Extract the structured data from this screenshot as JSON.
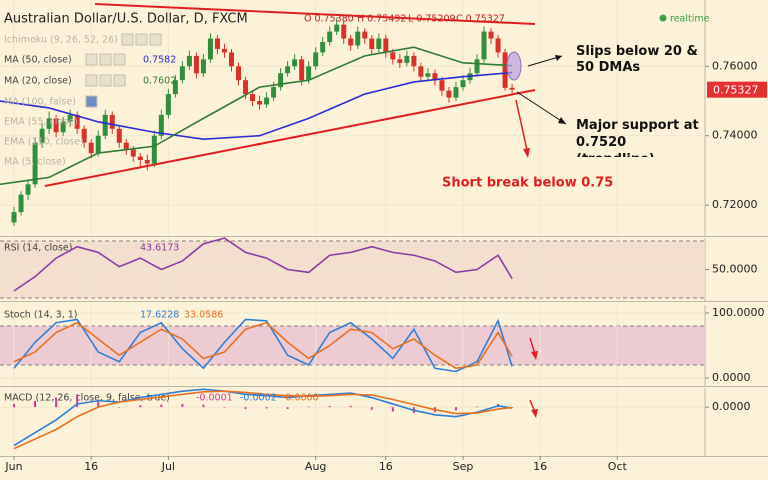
{
  "header": {
    "title": "Australian Dollar/U.S. Dollar, D, FXCM",
    "ohlc": [
      "O 0.75380",
      "H 0.75492",
      "L 0.75209",
      "C 0.75327"
    ],
    "status": "realtime"
  },
  "studies": [
    "Ichimoku (9, 26, 52, 26)",
    "MA (100, false)",
    "EMA (55, close)",
    "EMA (110, close)",
    "MA (5, close)"
  ],
  "annotations": [
    "Slips below 20 & 50 DMAs",
    "Major support at 0.7520 (trendline)",
    "Short break below 0.75"
  ],
  "chart_data": [
    {
      "type": "candlestick",
      "xlim": [
        -2,
        98.5
      ],
      "ylim": [
        0.7114,
        0.7791
      ],
      "yticks": [
        {
          "value": 0.76,
          "label": "0.76000"
        },
        {
          "value": 0.74,
          "label": "0.74000"
        },
        {
          "value": 0.72,
          "label": "0.72000"
        }
      ],
      "up_color": "#2f8f3a",
      "down_color": "#d9302a",
      "last_label": "0.75327",
      "x": [
        0,
        1,
        2,
        3,
        4,
        5,
        6,
        7,
        8,
        9,
        10,
        11,
        12,
        13,
        14,
        15,
        16,
        17,
        18,
        19,
        20,
        21,
        22,
        23,
        24,
        25,
        26,
        27,
        28,
        29,
        30,
        31,
        32,
        33,
        34,
        35,
        36,
        37,
        38,
        39,
        40,
        41,
        42,
        43,
        44,
        45,
        46,
        47,
        48,
        49,
        50,
        51,
        52,
        53,
        54,
        55,
        56,
        57,
        58,
        59,
        60,
        61,
        62,
        63,
        64,
        65,
        66,
        67,
        68,
        69,
        70,
        71
      ],
      "ohlc": [
        [
          0.715,
          0.7195,
          0.714,
          0.718
        ],
        [
          0.718,
          0.724,
          0.717,
          0.723
        ],
        [
          0.723,
          0.7275,
          0.7215,
          0.726
        ],
        [
          0.726,
          0.7395,
          0.725,
          0.738
        ],
        [
          0.738,
          0.7435,
          0.7365,
          0.742
        ],
        [
          0.742,
          0.747,
          0.7405,
          0.745
        ],
        [
          0.745,
          0.746,
          0.7395,
          0.741
        ],
        [
          0.741,
          0.7455,
          0.74,
          0.744
        ],
        [
          0.744,
          0.7475,
          0.7425,
          0.746
        ],
        [
          0.746,
          0.747,
          0.7405,
          0.742
        ],
        [
          0.742,
          0.743,
          0.7365,
          0.738
        ],
        [
          0.738,
          0.739,
          0.7335,
          0.735
        ],
        [
          0.735,
          0.7415,
          0.734,
          0.74
        ],
        [
          0.74,
          0.7475,
          0.739,
          0.746
        ],
        [
          0.746,
          0.747,
          0.7405,
          0.742
        ],
        [
          0.742,
          0.743,
          0.7365,
          0.738
        ],
        [
          0.738,
          0.739,
          0.7345,
          0.736
        ],
        [
          0.736,
          0.737,
          0.7325,
          0.734
        ],
        [
          0.734,
          0.735,
          0.731,
          0.733
        ],
        [
          0.733,
          0.7345,
          0.73,
          0.732
        ],
        [
          0.732,
          0.7415,
          0.731,
          0.74
        ],
        [
          0.74,
          0.7475,
          0.739,
          0.746
        ],
        [
          0.746,
          0.7535,
          0.745,
          0.752
        ],
        [
          0.752,
          0.7575,
          0.751,
          0.756
        ],
        [
          0.756,
          0.7615,
          0.755,
          0.76
        ],
        [
          0.76,
          0.7645,
          0.759,
          0.763
        ],
        [
          0.763,
          0.764,
          0.7565,
          0.758
        ],
        [
          0.758,
          0.7635,
          0.757,
          0.762
        ],
        [
          0.762,
          0.7695,
          0.761,
          0.768
        ],
        [
          0.768,
          0.769,
          0.7635,
          0.765
        ],
        [
          0.765,
          0.7665,
          0.7625,
          0.764
        ],
        [
          0.764,
          0.765,
          0.7585,
          0.76
        ],
        [
          0.76,
          0.761,
          0.7545,
          0.756
        ],
        [
          0.756,
          0.757,
          0.7505,
          0.752
        ],
        [
          0.752,
          0.753,
          0.7485,
          0.75
        ],
        [
          0.75,
          0.7515,
          0.7475,
          0.749
        ],
        [
          0.749,
          0.7525,
          0.748,
          0.751
        ],
        [
          0.751,
          0.7555,
          0.75,
          0.754
        ],
        [
          0.754,
          0.7595,
          0.753,
          0.758
        ],
        [
          0.758,
          0.7615,
          0.757,
          0.76
        ],
        [
          0.76,
          0.7635,
          0.759,
          0.762
        ],
        [
          0.762,
          0.763,
          0.7545,
          0.756
        ],
        [
          0.756,
          0.7615,
          0.755,
          0.76
        ],
        [
          0.76,
          0.7655,
          0.759,
          0.764
        ],
        [
          0.764,
          0.7685,
          0.763,
          0.767
        ],
        [
          0.767,
          0.7715,
          0.766,
          0.77
        ],
        [
          0.77,
          0.774,
          0.769,
          0.772
        ],
        [
          0.772,
          0.773,
          0.7665,
          0.768
        ],
        [
          0.768,
          0.769,
          0.7645,
          0.766
        ],
        [
          0.766,
          0.7715,
          0.765,
          0.77
        ],
        [
          0.77,
          0.771,
          0.7665,
          0.768
        ],
        [
          0.768,
          0.769,
          0.7635,
          0.765
        ],
        [
          0.765,
          0.7695,
          0.764,
          0.768
        ],
        [
          0.768,
          0.769,
          0.7625,
          0.764
        ],
        [
          0.764,
          0.765,
          0.7605,
          0.762
        ],
        [
          0.762,
          0.7635,
          0.7595,
          0.761
        ],
        [
          0.761,
          0.7645,
          0.76,
          0.763
        ],
        [
          0.763,
          0.764,
          0.7585,
          0.76
        ],
        [
          0.76,
          0.761,
          0.7555,
          0.757
        ],
        [
          0.757,
          0.7595,
          0.756,
          0.758
        ],
        [
          0.758,
          0.759,
          0.7545,
          0.756
        ],
        [
          0.756,
          0.757,
          0.7515,
          0.753
        ],
        [
          0.753,
          0.754,
          0.7495,
          0.751
        ],
        [
          0.751,
          0.7555,
          0.75,
          0.754
        ],
        [
          0.754,
          0.7575,
          0.753,
          0.756
        ],
        [
          0.756,
          0.7595,
          0.755,
          0.758
        ],
        [
          0.758,
          0.7635,
          0.757,
          0.762
        ],
        [
          0.762,
          0.7715,
          0.761,
          0.77
        ],
        [
          0.77,
          0.771,
          0.7665,
          0.768
        ],
        [
          0.768,
          0.769,
          0.7625,
          0.764
        ],
        [
          0.764,
          0.765,
          0.753,
          0.7538
        ],
        [
          0.7538,
          0.75492,
          0.75209,
          0.75327
        ]
      ],
      "series": [
        {
          "name": "MA (50, close)",
          "color": "#2b2bd6",
          "value_label": "0.7582",
          "x": [
            -2,
            5,
            12,
            20,
            27,
            35,
            42,
            50,
            57,
            64,
            71
          ],
          "values": [
            0.75,
            0.748,
            0.744,
            0.741,
            0.739,
            0.74,
            0.745,
            0.752,
            0.7555,
            0.757,
            0.7582
          ]
        },
        {
          "name": "MA (20, close)",
          "color": "#2e7d32",
          "value_label": "0.7602",
          "x": [
            -2,
            5,
            12,
            20,
            27,
            35,
            42,
            50,
            57,
            64,
            71
          ],
          "values": [
            0.726,
            0.728,
            0.735,
            0.737,
            0.745,
            0.754,
            0.756,
            0.763,
            0.7655,
            0.761,
            0.7602
          ]
        }
      ]
    },
    {
      "type": "line",
      "title": "RSI (14, close)",
      "xlim": [
        -2,
        98.5
      ],
      "ylim": [
        28.6,
        72.1
      ],
      "yticks": [
        {
          "value": 50,
          "label": "50.0000"
        }
      ],
      "bands": [
        30,
        70
      ],
      "series": [
        {
          "name": "RSI",
          "color": "#8a3aa8",
          "value_label": "43.6173",
          "x": [
            0,
            3,
            6,
            9,
            12,
            15,
            18,
            21,
            24,
            27,
            30,
            33,
            36,
            39,
            42,
            45,
            48,
            51,
            54,
            57,
            60,
            63,
            66,
            69,
            71
          ],
          "values": [
            35,
            45,
            58,
            66,
            62,
            52,
            58,
            50,
            56,
            68,
            72,
            62,
            58,
            50,
            48,
            60,
            62,
            66,
            62,
            60,
            56,
            48,
            50,
            60,
            43.6173
          ]
        }
      ]
    },
    {
      "type": "line",
      "title": "Stoch (14, 3, 1)",
      "xlim": [
        -2,
        98.5
      ],
      "ylim": [
        -10.8,
        112.3
      ],
      "yticks": [
        {
          "value": 100,
          "label": "100.0000"
        },
        {
          "value": 0,
          "label": "0.0000"
        }
      ],
      "bands": [
        20,
        80
      ],
      "series": [
        {
          "name": "%K",
          "color": "#2f7fd8",
          "value_label": "17.6228",
          "x": [
            0,
            3,
            6,
            9,
            12,
            15,
            18,
            21,
            24,
            27,
            30,
            33,
            36,
            39,
            42,
            45,
            48,
            51,
            54,
            57,
            60,
            63,
            66,
            69,
            71
          ],
          "values": [
            15,
            55,
            85,
            90,
            40,
            25,
            70,
            85,
            45,
            15,
            55,
            90,
            88,
            35,
            20,
            70,
            85,
            60,
            30,
            75,
            15,
            10,
            25,
            88,
            17.6228
          ]
        },
        {
          "name": "%D",
          "color": "#e8701e",
          "value_label": "33.0586",
          "x": [
            0,
            3,
            6,
            9,
            12,
            15,
            18,
            21,
            24,
            27,
            30,
            33,
            36,
            39,
            42,
            45,
            48,
            51,
            54,
            57,
            60,
            63,
            66,
            69,
            71
          ],
          "values": [
            25,
            40,
            70,
            85,
            60,
            35,
            55,
            75,
            60,
            30,
            40,
            75,
            85,
            55,
            30,
            50,
            75,
            70,
            45,
            60,
            35,
            15,
            20,
            70,
            33.0586
          ]
        }
      ]
    },
    {
      "type": "macd",
      "title": "MACD (12, 26, close, 9, false, true)",
      "xlim": [
        -2,
        98.5
      ],
      "ylim": [
        -0.0075,
        0.003
      ],
      "yticks": [
        {
          "value": 0,
          "label": "0.0000"
        }
      ],
      "xticks": [
        {
          "value": 0,
          "label": "Jun"
        },
        {
          "value": 11,
          "label": "16"
        },
        {
          "value": 22,
          "label": "Jul"
        },
        {
          "value": 43,
          "label": "Aug"
        },
        {
          "value": 53,
          "label": "16"
        },
        {
          "value": 64,
          "label": "Sep"
        },
        {
          "value": 75,
          "label": "16"
        },
        {
          "value": 86,
          "label": "Oct"
        }
      ],
      "histogram": {
        "name": "Histogram",
        "color": "#d63aa0",
        "value_label": "-0.0001",
        "x": [
          0,
          3,
          6,
          9,
          12,
          15,
          18,
          21,
          24,
          27,
          30,
          33,
          36,
          39,
          42,
          45,
          48,
          51,
          54,
          57,
          60,
          63,
          66,
          69,
          71
        ],
        "values": [
          0.0005,
          0.001,
          0.0015,
          0.002,
          0.001,
          0,
          0.0003,
          0.0004,
          0.0005,
          0.0004,
          0,
          -0.0003,
          -0.0002,
          -0.0003,
          0.0001,
          0.0002,
          0.0002,
          -0.0004,
          -0.0007,
          -0.0009,
          -0.0008,
          -0.0005,
          0.0001,
          0.0005,
          -0.00011
        ]
      },
      "series": [
        {
          "name": "MACD",
          "color": "#2f7fd8",
          "value_label": "-0.0002",
          "x": [
            0,
            3,
            6,
            9,
            12,
            15,
            18,
            21,
            24,
            27,
            30,
            33,
            36,
            39,
            42,
            45,
            48,
            51,
            54,
            57,
            60,
            63,
            66,
            69,
            71
          ],
          "values": [
            -0.006,
            -0.004,
            -0.002,
            0.0005,
            0.001,
            0.0008,
            0.0015,
            0.002,
            0.0025,
            0.0028,
            0.0025,
            0.002,
            0.0018,
            0.0015,
            0.0018,
            0.002,
            0.0022,
            0.0015,
            0.0005,
            -0.0005,
            -0.0012,
            -0.0015,
            -0.0008,
            0.0002,
            -0.00015
          ]
        },
        {
          "name": "Signal",
          "color": "#e8701e",
          "value_label": "-0.0000",
          "x": [
            0,
            3,
            6,
            9,
            12,
            15,
            18,
            21,
            24,
            27,
            30,
            33,
            36,
            39,
            42,
            45,
            48,
            51,
            54,
            57,
            60,
            63,
            66,
            69,
            71
          ],
          "values": [
            -0.0065,
            -0.005,
            -0.0035,
            -0.0015,
            0,
            0.0008,
            0.0012,
            0.0016,
            0.002,
            0.0024,
            0.0025,
            0.0023,
            0.002,
            0.0018,
            0.0017,
            0.0018,
            0.002,
            0.0019,
            0.0012,
            0.0004,
            -0.0004,
            -0.001,
            -0.0009,
            -0.0003,
            -4e-05
          ]
        }
      ]
    }
  ]
}
